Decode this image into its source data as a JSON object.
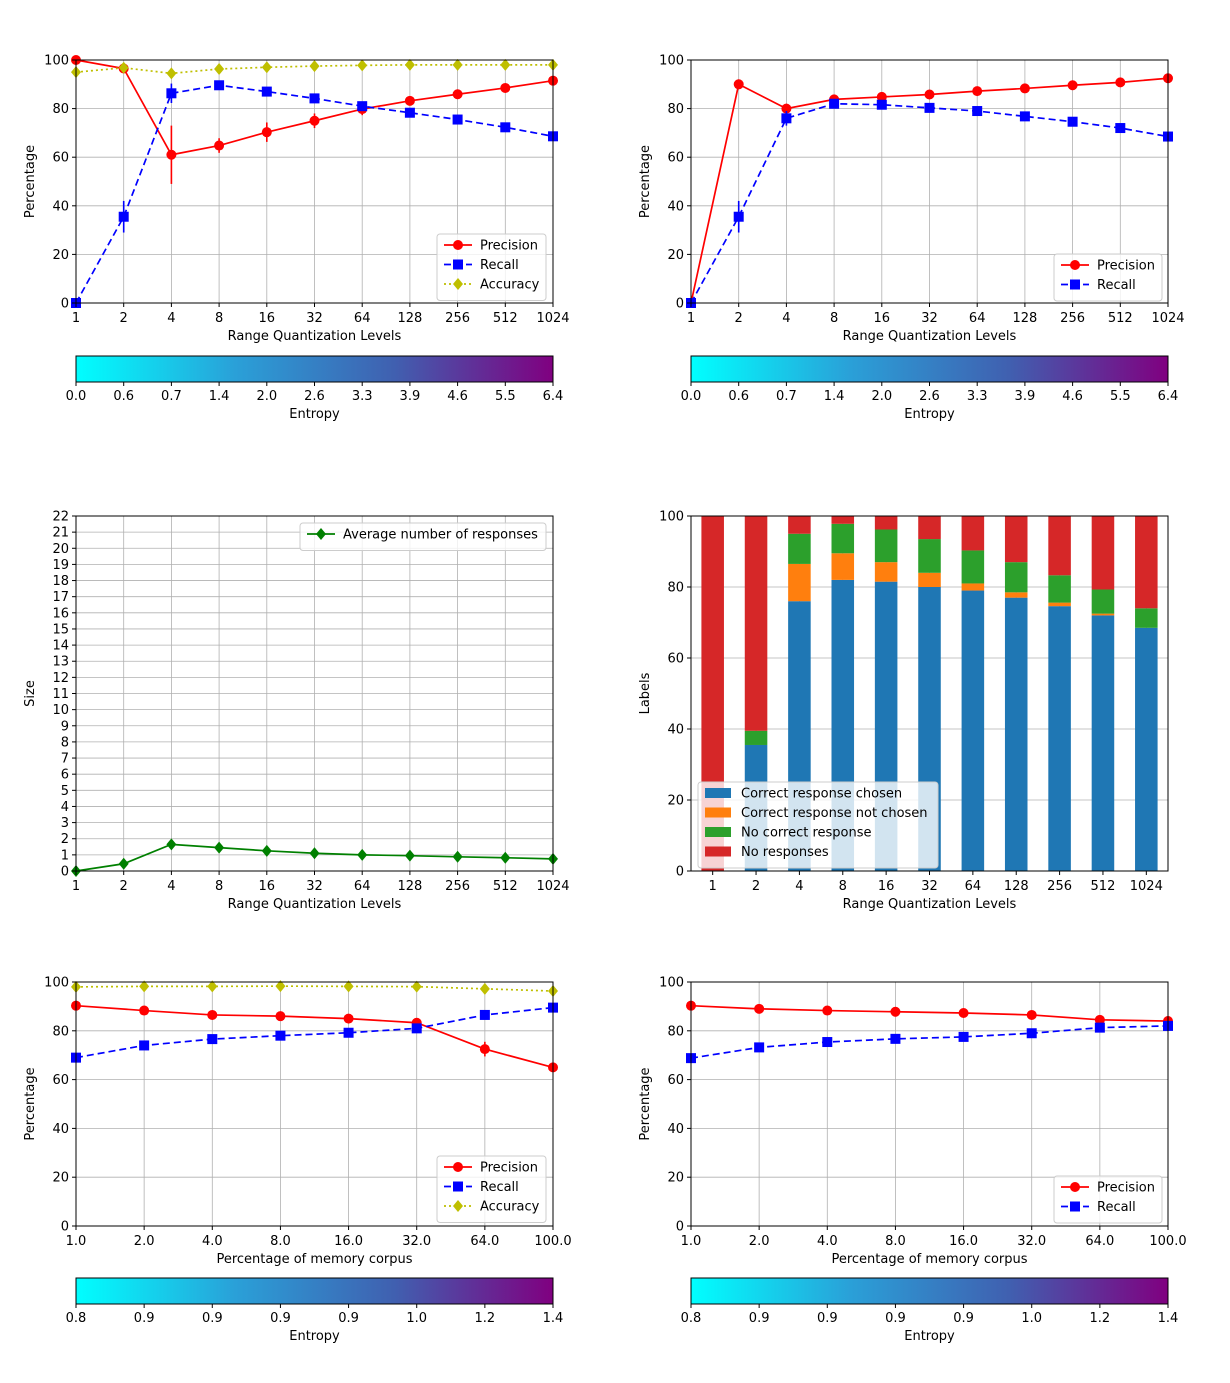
{
  "chart_data": [
    {
      "type": "line",
      "x": [
        "1",
        "2",
        "4",
        "8",
        "16",
        "32",
        "64",
        "128",
        "256",
        "512",
        "1024"
      ],
      "xlabel": "Range Quantization Levels",
      "ylabel": "Percentage",
      "ylim": [
        0,
        100
      ],
      "yticks": [
        "0",
        "20",
        "40",
        "60",
        "80",
        "100"
      ],
      "grid": true,
      "legend": "lower right",
      "series": [
        {
          "name": "Precision",
          "color": "#ff0000",
          "marker": "circle",
          "dash": "solid",
          "values": [
            100,
            96.5,
            61,
            64.8,
            70.3,
            75,
            79.8,
            83.2,
            85.9,
            88.5,
            91.5
          ],
          "errors": [
            0,
            1.5,
            12,
            3,
            4,
            3,
            2.5,
            1.5,
            1,
            1,
            1
          ]
        },
        {
          "name": "Recall",
          "color": "#0000ff",
          "marker": "square",
          "dash": "dashed",
          "values": [
            0,
            35.5,
            86.3,
            89.6,
            87,
            84.2,
            81,
            78.3,
            75.5,
            72.3,
            68.6
          ],
          "errors": [
            0,
            6.5,
            4,
            1,
            1,
            1,
            1,
            1,
            1,
            1,
            1
          ]
        },
        {
          "name": "Accuracy",
          "color": "#bfbf00",
          "marker": "diamond",
          "dash": "dotted",
          "values": [
            95,
            96.8,
            94.5,
            96.3,
            97,
            97.5,
            97.8,
            98,
            98,
            98,
            98
          ],
          "errors": [
            0,
            0,
            0,
            0,
            0,
            0,
            0,
            0,
            0,
            0,
            0
          ]
        }
      ],
      "colorbar": {
        "label": "Entropy",
        "ticks": [
          "0.0",
          "0.6",
          "0.7",
          "1.4",
          "2.0",
          "2.6",
          "3.3",
          "3.9",
          "4.6",
          "5.5",
          "6.4"
        ],
        "colors": [
          "#00ffff",
          "#2aa0d8",
          "#4060b0",
          "#800080"
        ]
      }
    },
    {
      "type": "line",
      "x": [
        "1",
        "2",
        "4",
        "8",
        "16",
        "32",
        "64",
        "128",
        "256",
        "512",
        "1024"
      ],
      "xlabel": "Range Quantization Levels",
      "ylabel": "Percentage",
      "ylim": [
        0,
        100
      ],
      "yticks": [
        "0",
        "20",
        "40",
        "60",
        "80",
        "100"
      ],
      "grid": true,
      "legend": "lower right",
      "series": [
        {
          "name": "Precision",
          "color": "#ff0000",
          "marker": "circle",
          "dash": "solid",
          "values": [
            0,
            90,
            80,
            83.8,
            84.8,
            85.8,
            87.2,
            88.3,
            89.6,
            90.8,
            92.5
          ],
          "errors": [
            0,
            2,
            2,
            1,
            1,
            1,
            1,
            1,
            1,
            1,
            1
          ]
        },
        {
          "name": "Recall",
          "color": "#0000ff",
          "marker": "square",
          "dash": "dashed",
          "values": [
            0,
            35.5,
            76,
            82,
            81.6,
            80.3,
            79,
            76.8,
            74.6,
            72,
            68.5
          ],
          "errors": [
            0,
            6.5,
            3,
            1,
            1,
            1,
            1,
            1,
            1,
            1,
            1
          ]
        }
      ],
      "colorbar": {
        "label": "Entropy",
        "ticks": [
          "0.0",
          "0.6",
          "0.7",
          "1.4",
          "2.0",
          "2.6",
          "3.3",
          "3.9",
          "4.6",
          "5.5",
          "6.4"
        ],
        "colors": [
          "#00ffff",
          "#2aa0d8",
          "#4060b0",
          "#800080"
        ]
      }
    },
    {
      "type": "line",
      "x": [
        "1",
        "2",
        "4",
        "8",
        "16",
        "32",
        "64",
        "128",
        "256",
        "512",
        "1024"
      ],
      "xlabel": "Range Quantization Levels",
      "ylabel": "Size",
      "ylim": [
        0,
        22
      ],
      "yticks": [
        "0",
        "1",
        "2",
        "3",
        "4",
        "5",
        "6",
        "7",
        "8",
        "9",
        "10",
        "11",
        "12",
        "13",
        "14",
        "15",
        "16",
        "17",
        "18",
        "19",
        "20",
        "21",
        "22"
      ],
      "grid": true,
      "legend": "upper right",
      "series": [
        {
          "name": "Average number of responses",
          "color": "#008000",
          "marker": "diamond",
          "dash": "solid",
          "values": [
            0,
            0.45,
            1.65,
            1.45,
            1.25,
            1.1,
            1.0,
            0.95,
            0.88,
            0.82,
            0.75
          ],
          "errors": [
            0,
            0,
            0.15,
            0.1,
            0.05,
            0.05,
            0.05,
            0.05,
            0.05,
            0.05,
            0.05
          ]
        }
      ]
    },
    {
      "type": "bar",
      "stacked": true,
      "categories": [
        "1",
        "2",
        "4",
        "8",
        "16",
        "32",
        "64",
        "128",
        "256",
        "512",
        "1024"
      ],
      "xlabel": "Range Quantization Levels",
      "ylabel": "Labels",
      "ylim": [
        0,
        100
      ],
      "yticks": [
        "0",
        "20",
        "40",
        "60",
        "80",
        "100"
      ],
      "grid": true,
      "legend": "lower left",
      "series": [
        {
          "name": "Correct response chosen",
          "color": "#1f77b4",
          "values": [
            0,
            35.5,
            76,
            82,
            81.5,
            80,
            79,
            77,
            74.6,
            72,
            68.5
          ]
        },
        {
          "name": "Correct response not chosen",
          "color": "#ff7f0e",
          "values": [
            0,
            0,
            10.5,
            7.5,
            5.5,
            4,
            2,
            1.5,
            1,
            0.5,
            0
          ]
        },
        {
          "name": "No correct response",
          "color": "#2ca02c",
          "values": [
            0,
            4,
            8.5,
            8.3,
            9.2,
            9.5,
            9.3,
            8.5,
            7.7,
            6.8,
            5.5
          ]
        },
        {
          "name": "No responses",
          "color": "#d62728",
          "values": [
            100,
            60.5,
            5,
            2.2,
            3.8,
            6.5,
            9.7,
            13,
            16.7,
            20.7,
            26
          ]
        }
      ]
    },
    {
      "type": "line",
      "x": [
        "1.0",
        "2.0",
        "4.0",
        "8.0",
        "16.0",
        "32.0",
        "64.0",
        "100.0"
      ],
      "xlabel": "Percentage of memory corpus",
      "ylabel": "Percentage",
      "ylim": [
        0,
        100
      ],
      "yticks": [
        "0",
        "20",
        "40",
        "60",
        "80",
        "100"
      ],
      "grid": true,
      "legend": "lower right",
      "series": [
        {
          "name": "Precision",
          "color": "#ff0000",
          "marker": "circle",
          "dash": "solid",
          "values": [
            90.3,
            88.3,
            86.5,
            86,
            85,
            83.3,
            72.5,
            65
          ],
          "errors": [
            0,
            0,
            0,
            0,
            0,
            0,
            3,
            0
          ]
        },
        {
          "name": "Recall",
          "color": "#0000ff",
          "marker": "square",
          "dash": "dashed",
          "values": [
            69,
            74,
            76.6,
            78,
            79.2,
            81,
            86.5,
            89.5
          ],
          "errors": [
            0,
            0,
            0,
            0,
            0,
            0,
            0,
            0
          ]
        },
        {
          "name": "Accuracy",
          "color": "#bfbf00",
          "marker": "diamond",
          "dash": "dotted",
          "values": [
            98,
            98.2,
            98.2,
            98.3,
            98.2,
            98.1,
            97.2,
            96.3
          ],
          "errors": [
            0,
            0,
            0,
            0,
            0,
            0,
            0,
            0
          ]
        }
      ],
      "colorbar": {
        "label": "Entropy",
        "ticks": [
          "0.8",
          "0.9",
          "0.9",
          "0.9",
          "0.9",
          "1.0",
          "1.2",
          "1.4"
        ],
        "colors": [
          "#00ffff",
          "#2aa0d8",
          "#4060b0",
          "#800080"
        ]
      }
    },
    {
      "type": "line",
      "x": [
        "1.0",
        "2.0",
        "4.0",
        "8.0",
        "16.0",
        "32.0",
        "64.0",
        "100.0"
      ],
      "xlabel": "Percentage of memory corpus",
      "ylabel": "Percentage",
      "ylim": [
        0,
        100
      ],
      "yticks": [
        "0",
        "20",
        "40",
        "60",
        "80",
        "100"
      ],
      "grid": true,
      "legend": "lower right",
      "series": [
        {
          "name": "Precision",
          "color": "#ff0000",
          "marker": "circle",
          "dash": "solid",
          "values": [
            90.3,
            89,
            88.3,
            87.8,
            87.3,
            86.5,
            84.5,
            84
          ],
          "errors": [
            0,
            0,
            0,
            0,
            0,
            0,
            0,
            0
          ]
        },
        {
          "name": "Recall",
          "color": "#0000ff",
          "marker": "square",
          "dash": "dashed",
          "values": [
            68.8,
            73.2,
            75.4,
            76.7,
            77.5,
            79,
            81.3,
            82
          ],
          "errors": [
            0,
            0,
            0,
            0,
            0,
            0,
            0,
            0
          ]
        }
      ],
      "colorbar": {
        "label": "Entropy",
        "ticks": [
          "0.8",
          "0.9",
          "0.9",
          "0.9",
          "0.9",
          "1.0",
          "1.2",
          "1.4"
        ],
        "colors": [
          "#00ffff",
          "#2aa0d8",
          "#4060b0",
          "#800080"
        ]
      }
    }
  ]
}
